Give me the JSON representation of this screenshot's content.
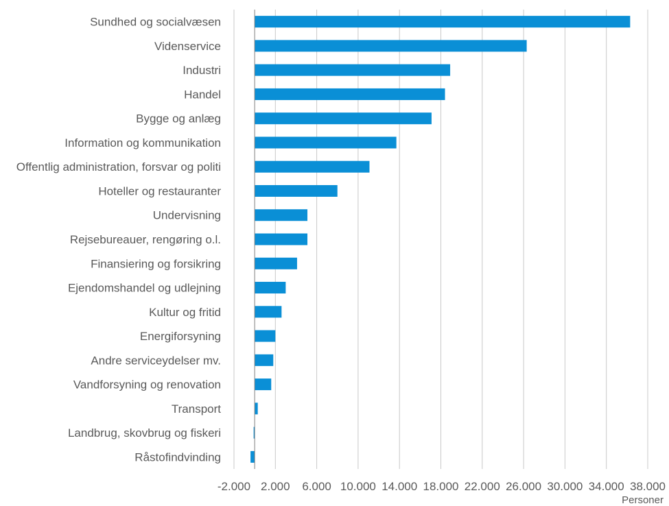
{
  "chart_data": {
    "type": "bar",
    "orientation": "horizontal",
    "categories": [
      "Sundhed og socialvæsen",
      "Videnservice",
      "Industri",
      "Handel",
      "Bygge og anlæg",
      "Information og kommunikation",
      "Offentlig administration, forsvar og politi",
      "Hoteller og restauranter",
      "Undervisning",
      "Rejsebureauer, rengøring o.l.",
      "Finansiering og forsikring",
      "Ejendomshandel og udlejning",
      "Kultur og fritid",
      "Energiforsyning",
      "Andre serviceydelser mv.",
      "Vandforsyning og renovation",
      "Transport",
      "Landbrug, skovbrug og fiskeri",
      "Råstofindvinding"
    ],
    "values": [
      36300,
      26300,
      18900,
      18400,
      17100,
      13700,
      11100,
      8000,
      5100,
      5100,
      4100,
      3000,
      2600,
      2000,
      1800,
      1600,
      300,
      -100,
      -400
    ],
    "xlabel": "Personer",
    "ylabel": "",
    "xlim": [
      -2000,
      38000
    ],
    "xticks": [
      -2000,
      2000,
      6000,
      10000,
      14000,
      18000,
      22000,
      26000,
      30000,
      34000,
      38000
    ],
    "xtick_labels": [
      "-2.000",
      "2.000",
      "6.000",
      "10.000",
      "14.000",
      "18.000",
      "22.000",
      "26.000",
      "30.000",
      "34.000",
      "38.000"
    ],
    "grid": "vertical",
    "legend": "none",
    "colors": {
      "bar": "#0a8fd6",
      "grid": "#c8c8c8",
      "zero_axis": "#808080",
      "text": "#595959"
    }
  }
}
